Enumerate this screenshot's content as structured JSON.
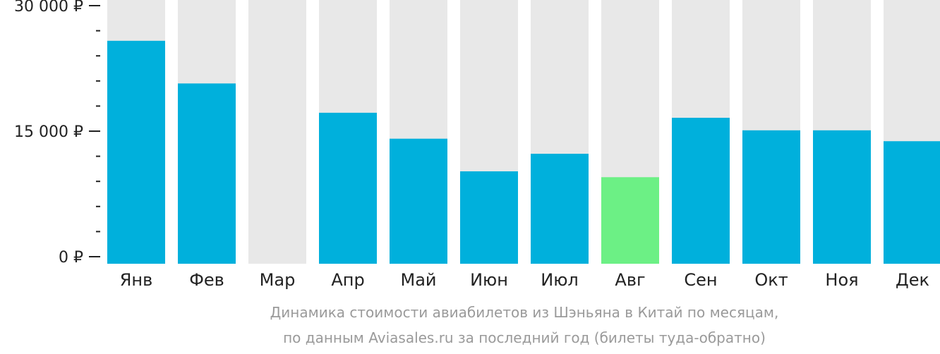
{
  "chart_data": {
    "type": "bar",
    "categories": [
      "Янв",
      "Фев",
      "Мар",
      "Апр",
      "Май",
      "Июн",
      "Июл",
      "Авг",
      "Сен",
      "Окт",
      "Ноя",
      "Дек"
    ],
    "values": [
      25800,
      20700,
      null,
      17200,
      14100,
      10200,
      12300,
      9500,
      16600,
      15100,
      15100,
      13800
    ],
    "highlight_index": 7,
    "ylim": [
      0,
      30000
    ],
    "yticks": [
      0,
      15000,
      30000
    ],
    "ytick_labels": [
      "0 ₽",
      "15 000 ₽",
      "30 000 ₽"
    ],
    "minor_ticks_between": 4,
    "colors": {
      "bar": "#00b0dc",
      "highlight": "#6cf085",
      "background_bar": "#e8e8e8",
      "axis": "#222222"
    },
    "caption_line1": "Динамика стоимости авиабилетов из Шэньяна в Китай по месяцам,",
    "caption_line2": "по данным Aviasales.ru за последний год (билеты туда-обратно)"
  }
}
